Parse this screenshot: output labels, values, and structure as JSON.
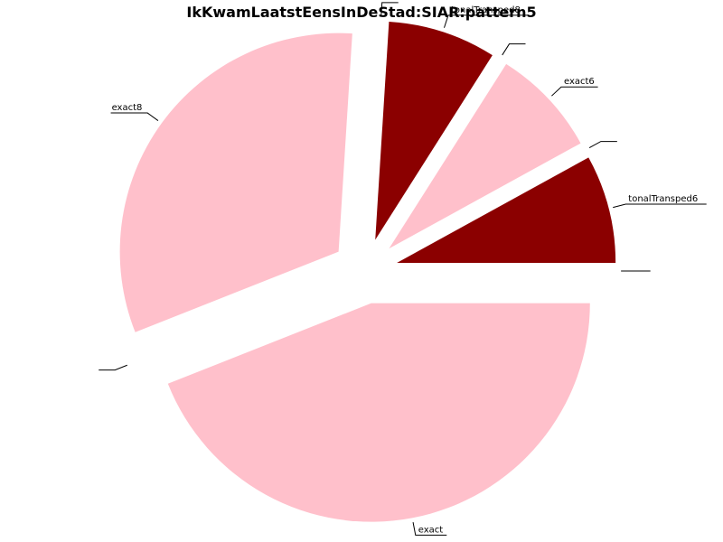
{
  "chart_data": {
    "type": "pie",
    "title": "IkKwamLaatstEensInDeStad:SIAR:pattern5",
    "start_angle_deg": 0,
    "direction": "counterclockwise",
    "slices": [
      {
        "label": "tonalTransped6",
        "value": 8,
        "color": "#8b0000",
        "explode": 0.15
      },
      {
        "label": "",
        "value": 0,
        "color": "#8b0000",
        "explode": 0.15
      },
      {
        "label": "exact6",
        "value": 8,
        "color": "#ffc0cb",
        "explode": 0.15
      },
      {
        "label": "",
        "value": 0,
        "color": "#8b0000",
        "explode": 0.15
      },
      {
        "label": "tonalTransped8",
        "value": 8,
        "color": "#8b0000",
        "explode": 0.15
      },
      {
        "label": "",
        "value": 0,
        "color": "#8b0000",
        "explode": 0.15
      },
      {
        "label": "exact8",
        "value": 32,
        "color": "#ffc0cb",
        "explode": 0.15
      },
      {
        "label": "",
        "value": 0,
        "color": "#8b0000",
        "explode": 0.15
      },
      {
        "label": "exact",
        "value": 44,
        "color": "#ffc0cb",
        "explode": 0.15
      },
      {
        "label": "",
        "value": 0,
        "color": "#8b0000",
        "explode": 0.15
      }
    ]
  }
}
